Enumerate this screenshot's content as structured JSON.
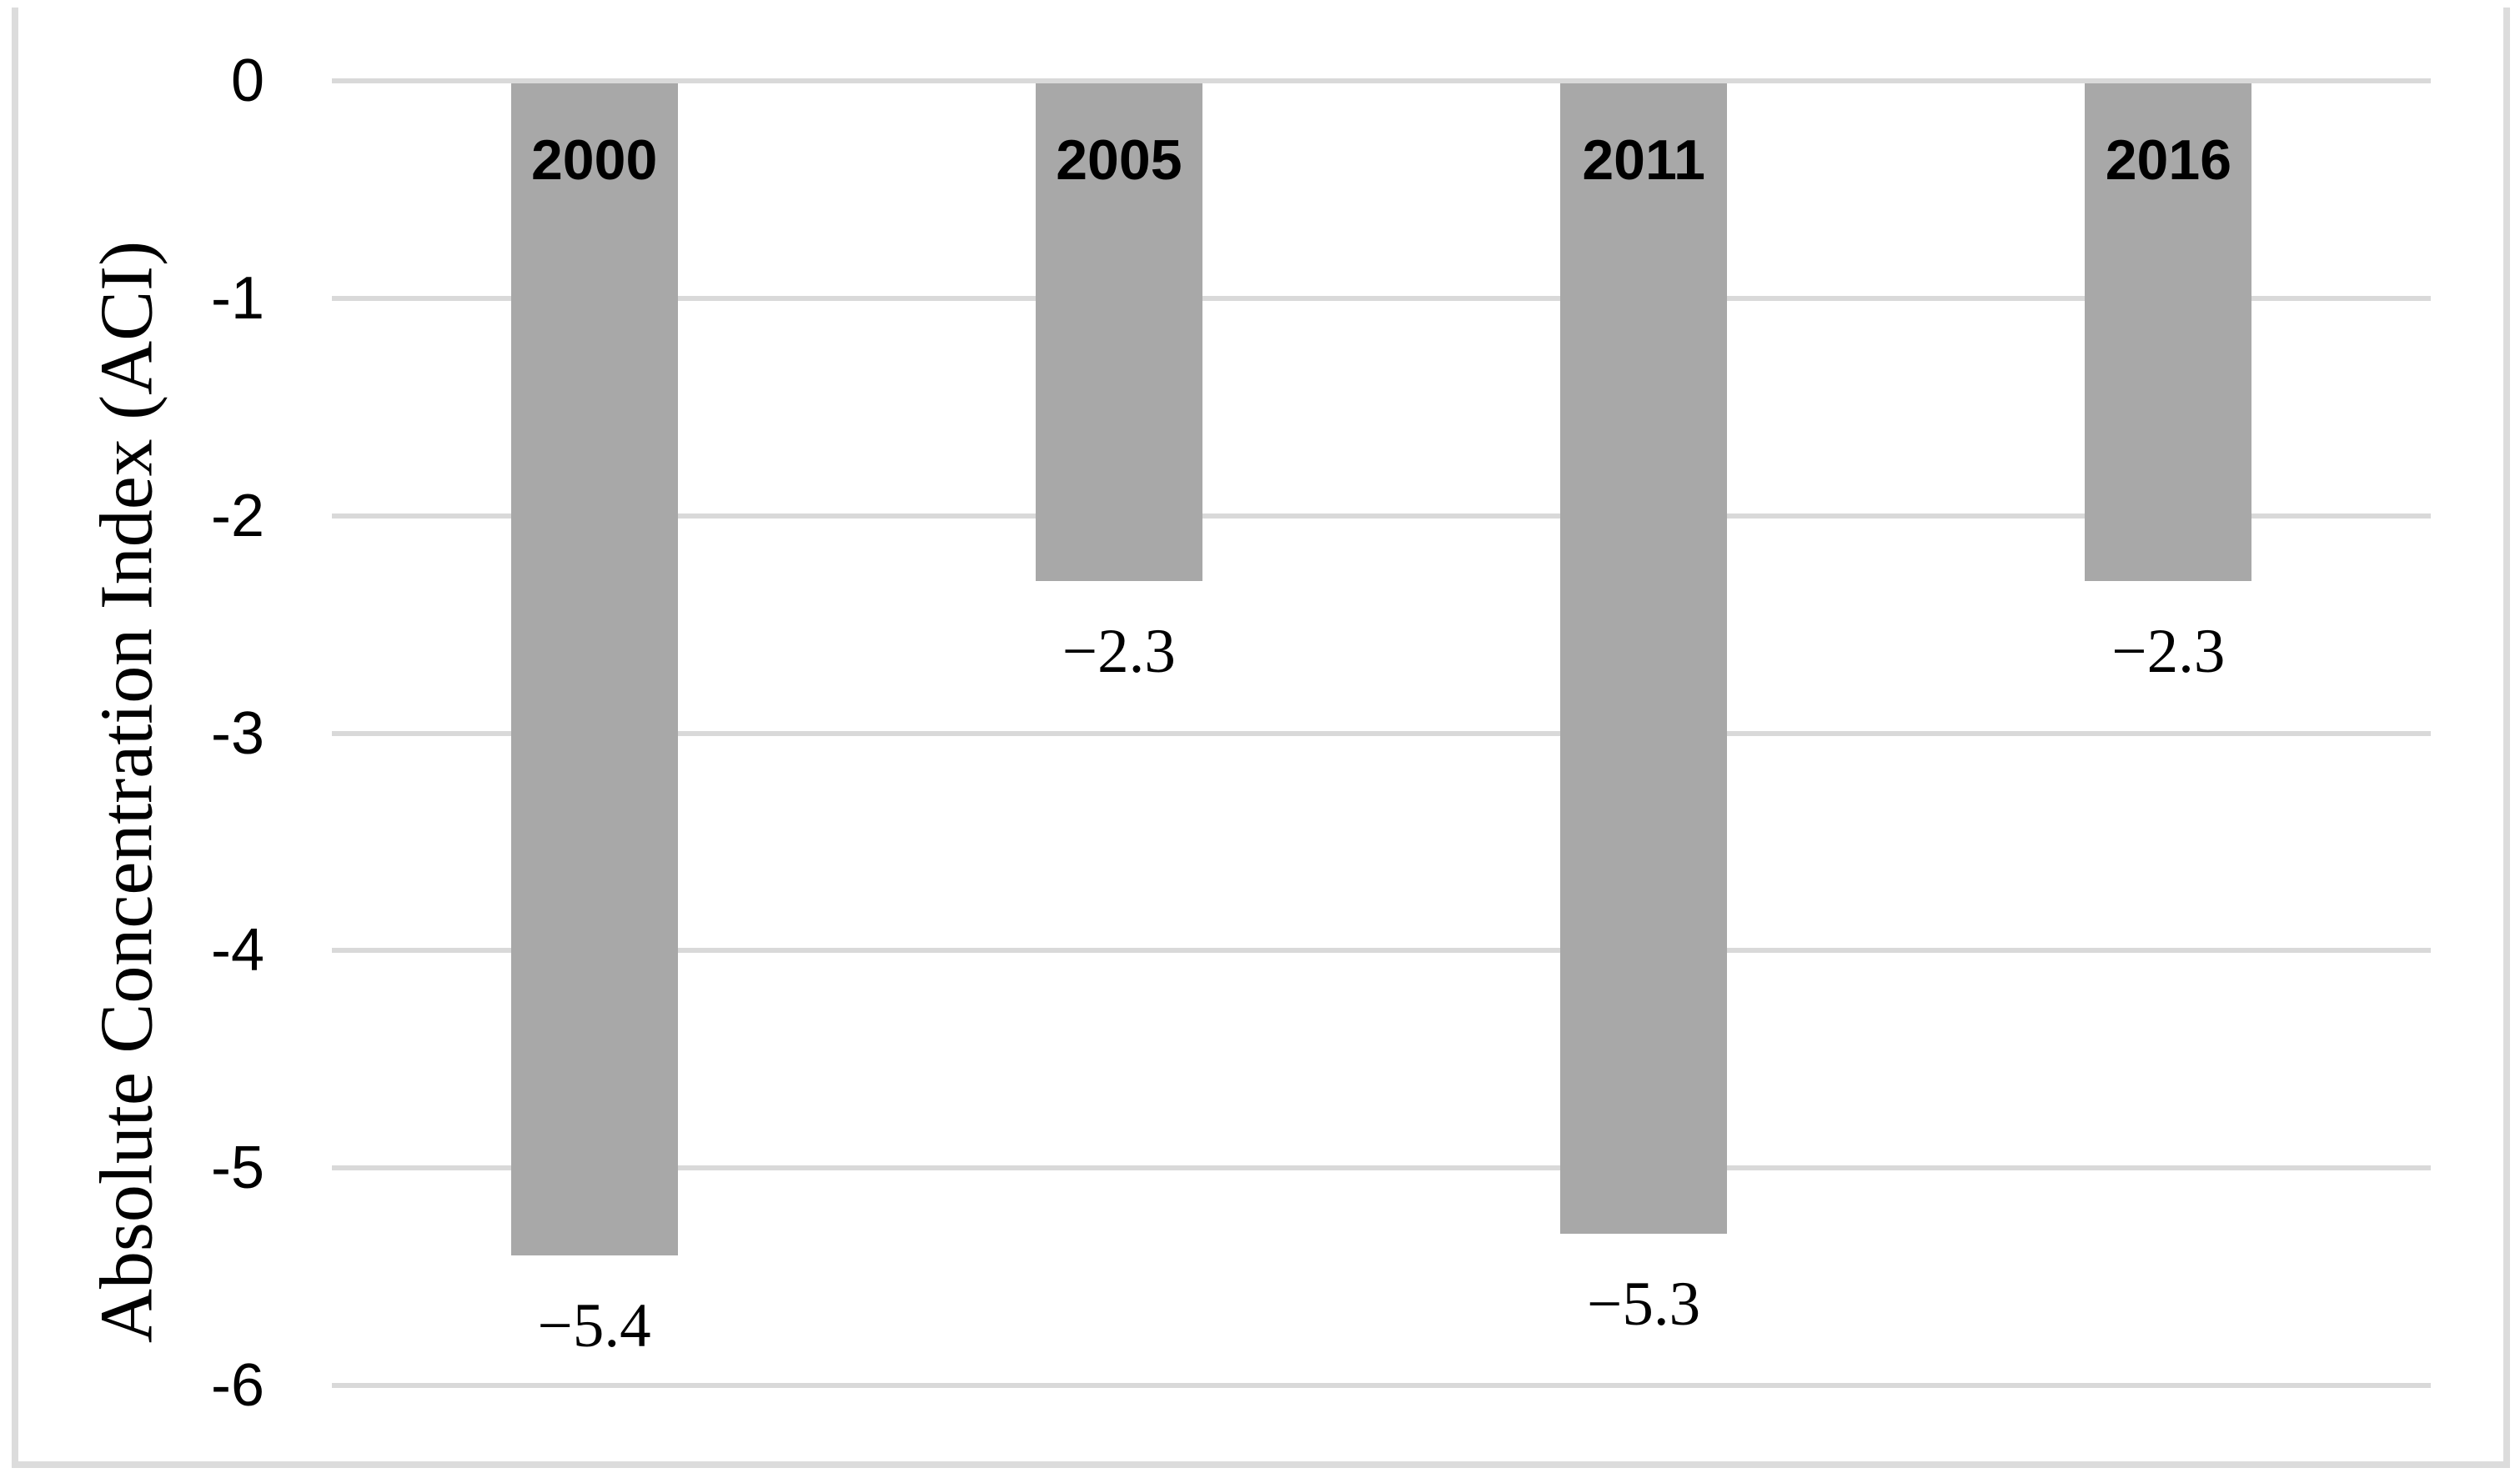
{
  "chart_data": {
    "type": "bar",
    "title": "",
    "xlabel": "",
    "ylabel": "Absolute Concentration Index (ACI)",
    "categories": [
      "2000",
      "2005",
      "2011",
      "2016"
    ],
    "values": [
      -5.4,
      -2.3,
      -5.3,
      -2.3
    ],
    "value_labels": [
      "−5.4",
      "−2.3",
      "−5.3",
      "−2.3"
    ],
    "yticks": [
      0,
      -1,
      -2,
      -3,
      -4,
      -5,
      -6
    ],
    "ytick_labels": [
      "0",
      "-1",
      "-2",
      "-3",
      "-4",
      "-5",
      "-6"
    ],
    "ylim": [
      -6,
      0
    ],
    "grid": true,
    "legend": null,
    "colors": {
      "bar_fill": "#a8a8a8",
      "gridline": "#d9d9d9",
      "figure_border": "#dcdcdc",
      "text": "#000000",
      "background": "#ffffff"
    }
  }
}
